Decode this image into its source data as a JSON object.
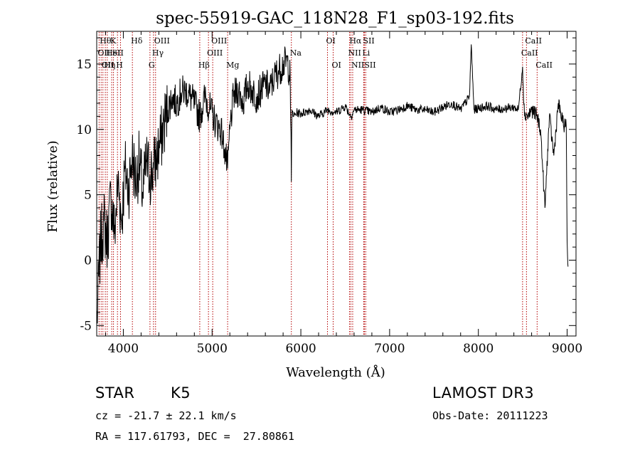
{
  "chart_data": {
    "type": "line",
    "title": "spec-55919-GAC_118N28_F1_sp03-192.fits",
    "xlabel": "Wavelength (Å)",
    "ylabel": "Flux (relative)",
    "xlim": [
      3700,
      9100
    ],
    "ylim": [
      -5.8,
      17.5
    ],
    "x_ticks": [
      4000,
      5000,
      6000,
      7000,
      8000,
      9000
    ],
    "x_tick_labels": [
      "4000",
      "5000",
      "6000",
      "7000",
      "8000",
      "9000"
    ],
    "y_ticks": [
      -5,
      0,
      5,
      10,
      15
    ],
    "y_tick_labels": [
      "-5",
      "0",
      "5",
      "10",
      "15"
    ],
    "series": [
      {
        "color": "#000000",
        "x": [
          3700,
          3740,
          3780,
          3820,
          3860,
          3900,
          3940,
          3980,
          4020,
          4060,
          4100,
          4140,
          4180,
          4220,
          4260,
          4300,
          4340,
          4380,
          4420,
          4460,
          4500,
          4550,
          4600,
          4650,
          4700,
          4750,
          4800,
          4860,
          4920,
          4980,
          5040,
          5100,
          5140,
          5175,
          5200,
          5240,
          5300,
          5350,
          5400,
          5450,
          5500,
          5550,
          5600,
          5650,
          5700,
          5750,
          5800,
          5850,
          5880,
          5893,
          5900,
          5920,
          5960,
          6000,
          6100,
          6200,
          6300,
          6400,
          6500,
          6563,
          6600,
          6700,
          6800,
          6900,
          7000,
          7100,
          7200,
          7300,
          7400,
          7500,
          7600,
          7700,
          7800,
          7900,
          7920,
          7950,
          8000,
          8100,
          8200,
          8300,
          8400,
          8450,
          8498,
          8520,
          8542,
          8560,
          8600,
          8662,
          8700,
          8750,
          8800,
          8850,
          8900,
          8950,
          8990,
          9000,
          9010
        ],
        "y": [
          -5.0,
          1.0,
          3.0,
          1.5,
          5.0,
          2.0,
          6.0,
          3.0,
          7.0,
          5.5,
          8.0,
          6.0,
          7.5,
          5.0,
          7.5,
          6.5,
          7.0,
          8.0,
          9.0,
          10.5,
          11.5,
          12.5,
          12.0,
          12.8,
          13.0,
          12.5,
          12.0,
          11.0,
          12.5,
          11.5,
          10.5,
          10.0,
          8.5,
          7.0,
          10.0,
          12.5,
          13.0,
          12.0,
          13.5,
          13.0,
          12.5,
          13.0,
          13.5,
          13.0,
          14.0,
          14.5,
          15.0,
          15.2,
          14.0,
          6.0,
          11.5,
          11.0,
          11.3,
          11.2,
          11.5,
          11.0,
          11.5,
          11.3,
          11.8,
          11.0,
          11.5,
          11.5,
          11.3,
          11.7,
          11.3,
          11.5,
          11.8,
          11.5,
          11.5,
          11.3,
          11.7,
          12.0,
          11.5,
          12.5,
          16.5,
          11.5,
          11.6,
          11.8,
          11.5,
          11.6,
          11.7,
          11.5,
          14.8,
          11.0,
          11.2,
          11.0,
          11.5,
          11.0,
          10.0,
          4.0,
          11.0,
          8.0,
          12.0,
          10.5,
          10.2,
          1.5,
          -0.5
        ]
      }
    ],
    "line_markers": [
      {
        "wavelength": 3727,
        "label": "OII",
        "row": 1
      },
      {
        "wavelength": 3750,
        "label": "Hθ",
        "row": 0
      },
      {
        "wavelength": 3770,
        "label": "OII",
        "row": 2
      },
      {
        "wavelength": 3797,
        "label": "Hη",
        "row": 2
      },
      {
        "wavelength": 3819,
        "label": "HeI",
        "row": 1
      },
      {
        "wavelength": 3869,
        "label": "K",
        "row": 0
      },
      {
        "wavelength": 3889,
        "label": "SII",
        "row": 1
      },
      {
        "wavelength": 3934,
        "label": "H",
        "row": 2
      },
      {
        "wavelength": 3968,
        "label": "",
        "row": 0
      },
      {
        "wavelength": 4102,
        "label": "Hδ",
        "row": 0
      },
      {
        "wavelength": 4300,
        "label": "G",
        "row": 2
      },
      {
        "wavelength": 4340,
        "label": "Hγ",
        "row": 1
      },
      {
        "wavelength": 4363,
        "label": "OIII",
        "row": 0
      },
      {
        "wavelength": 4861,
        "label": "Hβ",
        "row": 2
      },
      {
        "wavelength": 4959,
        "label": "OIII",
        "row": 1
      },
      {
        "wavelength": 5007,
        "label": "OIII",
        "row": 0
      },
      {
        "wavelength": 5175,
        "label": "Mg",
        "row": 2
      },
      {
        "wavelength": 5893,
        "label": "Na",
        "row": 1
      },
      {
        "wavelength": 6300,
        "label": "OI",
        "row": 0
      },
      {
        "wavelength": 6364,
        "label": "OI",
        "row": 2
      },
      {
        "wavelength": 6548,
        "label": "NII",
        "row": 1
      },
      {
        "wavelength": 6563,
        "label": "Hα",
        "row": 0
      },
      {
        "wavelength": 6584,
        "label": "NII",
        "row": 2
      },
      {
        "wavelength": 6708,
        "label": "Li",
        "row": 1
      },
      {
        "wavelength": 6716,
        "label": "SII",
        "row": 0
      },
      {
        "wavelength": 6731,
        "label": "SII",
        "row": 2
      },
      {
        "wavelength": 8498,
        "label": "CaII",
        "row": 1
      },
      {
        "wavelength": 8542,
        "label": "CaII",
        "row": 0
      },
      {
        "wavelength": 8662,
        "label": "CaII",
        "row": 2
      }
    ],
    "marker_color": "#b30000",
    "grid": false
  },
  "info": {
    "object_class": "STAR",
    "subclass": "K5",
    "redshift_line": "cz = -21.7 ± 22.1 km/s",
    "coords_line": "RA = 117.61793, DEC =  27.80861",
    "survey": "LAMOST DR3",
    "obs_date_line": "Obs-Date: 20111223"
  }
}
